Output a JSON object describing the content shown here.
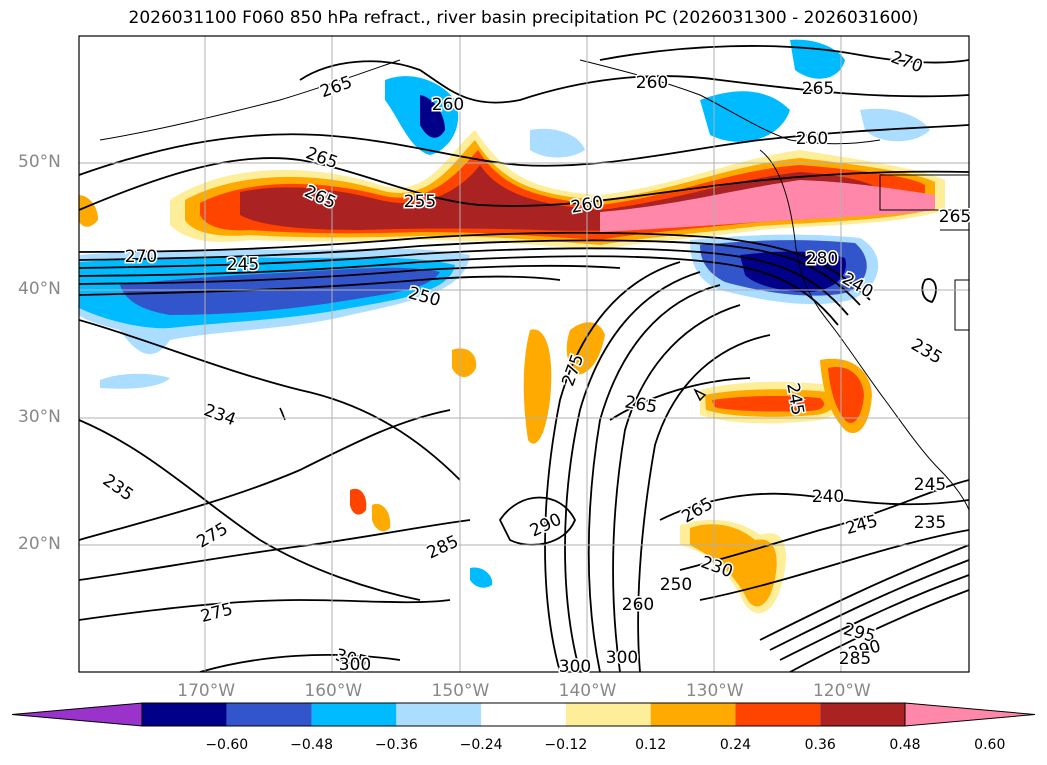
{
  "title": "2026031100 F060 850 hPa refract., river basin precipitation PC (2026031300 - 2026031600)",
  "map": {
    "projection": "lat-lon",
    "lon_range": [
      -180,
      -110
    ],
    "lat_range": [
      10,
      60
    ],
    "lat_ticks": [
      {
        "value": 50,
        "label": "50°N"
      },
      {
        "value": 40,
        "label": "40°N"
      },
      {
        "value": 30,
        "label": "30°N"
      },
      {
        "value": 20,
        "label": "20°N"
      }
    ],
    "lon_ticks": [
      {
        "value": -170,
        "label": "170°W"
      },
      {
        "value": -160,
        "label": "160°W"
      },
      {
        "value": -150,
        "label": "150°W"
      },
      {
        "value": -140,
        "label": "140°W"
      },
      {
        "value": -130,
        "label": "130°W"
      },
      {
        "value": -120,
        "label": "120°W"
      }
    ],
    "contour_labels": [
      "265",
      "260",
      "260",
      "265",
      "270",
      "265",
      "260",
      "265",
      "255",
      "260",
      "265",
      "270",
      "245",
      "250",
      "280",
      "240",
      "235",
      "234",
      "275",
      "265",
      "245",
      "235",
      "275",
      "285",
      "290",
      "265",
      "240",
      "245",
      "245",
      "235",
      "230",
      "250",
      "260",
      "275",
      "305",
      "300",
      "300",
      "295",
      "290",
      "285",
      "300"
    ]
  },
  "colorbar": {
    "colors": [
      "#9933cc",
      "#000088",
      "#3355cc",
      "#00bbff",
      "#aaddff",
      "#ffffff",
      "#ffee99",
      "#ffaa00",
      "#ff4400",
      "#aa2222",
      "#ff88aa"
    ],
    "labels": [
      "−0.60",
      "−0.48",
      "−0.36",
      "−0.24",
      "−0.12",
      "0.12",
      "0.24",
      "0.36",
      "0.48",
      "0.60"
    ]
  }
}
